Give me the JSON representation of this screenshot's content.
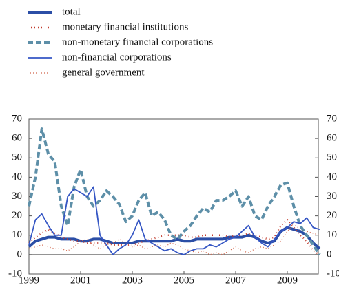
{
  "chart_data": {
    "type": "line",
    "x": [
      1999.0,
      1999.25,
      1999.5,
      1999.75,
      2000.0,
      2000.25,
      2000.5,
      2000.75,
      2001.0,
      2001.25,
      2001.5,
      2001.75,
      2002.0,
      2002.25,
      2002.5,
      2002.75,
      2003.0,
      2003.25,
      2003.5,
      2003.75,
      2004.0,
      2004.25,
      2004.5,
      2004.75,
      2005.0,
      2005.25,
      2005.5,
      2005.75,
      2006.0,
      2006.25,
      2006.5,
      2006.75,
      2007.0,
      2007.25,
      2007.5,
      2007.75,
      2008.0,
      2008.25,
      2008.5,
      2008.75,
      2009.0,
      2009.25,
      2009.5,
      2009.75,
      2010.0,
      2010.25
    ],
    "series": [
      {
        "name": "total",
        "color": "#2b4ea6",
        "width": 4,
        "dash": "none",
        "values": [
          4,
          7,
          8,
          9,
          9,
          8,
          8,
          8,
          7,
          7,
          8,
          8,
          7,
          6,
          6,
          6,
          6,
          7,
          7,
          7,
          7,
          7,
          7,
          8,
          7,
          7,
          8,
          8,
          8,
          8,
          8,
          9,
          9,
          9,
          10,
          9,
          7,
          6,
          7,
          12,
          14,
          13,
          12,
          10,
          6,
          3
        ]
      },
      {
        "name": "monetary financial institutions",
        "color": "#c0392b",
        "width": 2.5,
        "dash": "1 4",
        "values": [
          6,
          9,
          11,
          13,
          11,
          9,
          8,
          7,
          7,
          6,
          6,
          6,
          6,
          5,
          5,
          5,
          5,
          6,
          7,
          8,
          9,
          10,
          10,
          10,
          10,
          9,
          9,
          10,
          10,
          10,
          10,
          9,
          10,
          10,
          11,
          10,
          9,
          8,
          9,
          15,
          18,
          14,
          10,
          7,
          2,
          0
        ]
      },
      {
        "name": "non-monetary financial corporations",
        "color": "#5d8fa8",
        "width": 4,
        "dash": "8 4",
        "values": [
          25,
          40,
          65,
          52,
          48,
          25,
          15,
          35,
          44,
          30,
          25,
          28,
          33,
          30,
          26,
          17,
          20,
          28,
          32,
          20,
          22,
          18,
          10,
          8,
          12,
          15,
          20,
          24,
          22,
          28,
          28,
          30,
          33,
          25,
          30,
          20,
          18,
          25,
          30,
          36,
          37,
          25,
          15,
          10,
          5,
          0
        ]
      },
      {
        "name": "non-financial corporations",
        "color": "#3556c4",
        "width": 1.8,
        "dash": "none",
        "values": [
          5,
          18,
          21,
          15,
          10,
          10,
          30,
          34,
          32,
          30,
          35,
          10,
          5,
          0,
          3,
          5,
          10,
          18,
          8,
          6,
          4,
          2,
          3,
          1,
          0,
          2,
          3,
          3,
          5,
          4,
          6,
          8,
          9,
          12,
          15,
          9,
          6,
          4,
          8,
          12,
          14,
          17,
          16,
          19,
          14,
          13
        ]
      },
      {
        "name": "general government",
        "color": "#d0654a",
        "width": 1.3,
        "dash": "1 3",
        "values": [
          3,
          4,
          5,
          4,
          3,
          3,
          2,
          4,
          7,
          8,
          5,
          3,
          5,
          6,
          8,
          6,
          4,
          5,
          3,
          4,
          5,
          4,
          6,
          5,
          3,
          2,
          1,
          2,
          0,
          1,
          0,
          2,
          4,
          2,
          1,
          3,
          4,
          3,
          5,
          7,
          12,
          16,
          13,
          12,
          11,
          10
        ]
      }
    ],
    "xlim": [
      1999,
      2010.2
    ],
    "xticks": [
      1999,
      2001,
      2003,
      2005,
      2007,
      2009
    ],
    "ylim": [
      -10,
      70
    ],
    "yticks": [
      -10,
      0,
      10,
      20,
      30,
      40,
      50,
      60,
      70
    ],
    "y2lim": [
      -10,
      70
    ],
    "y2ticks": [
      -10,
      0,
      10,
      20,
      30,
      40,
      50,
      60,
      70
    ]
  }
}
